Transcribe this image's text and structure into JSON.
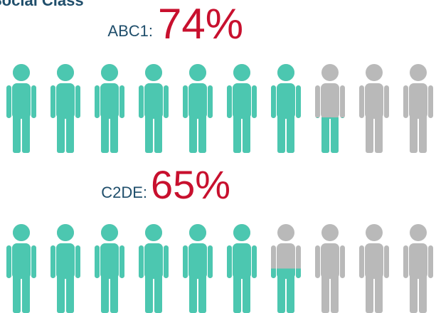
{
  "chart_data": {
    "type": "pictogram",
    "title": "Social Class",
    "categories": [
      "ABC1:",
      "C2DE:"
    ],
    "values": [
      74,
      65
    ],
    "value_labels": [
      "74%",
      "65%"
    ],
    "icon_count": 10,
    "color": "#4cc7b0",
    "empty_color": "#b9b9b9",
    "label_color": "#c8102e",
    "title_color": "#1f4e6b"
  }
}
